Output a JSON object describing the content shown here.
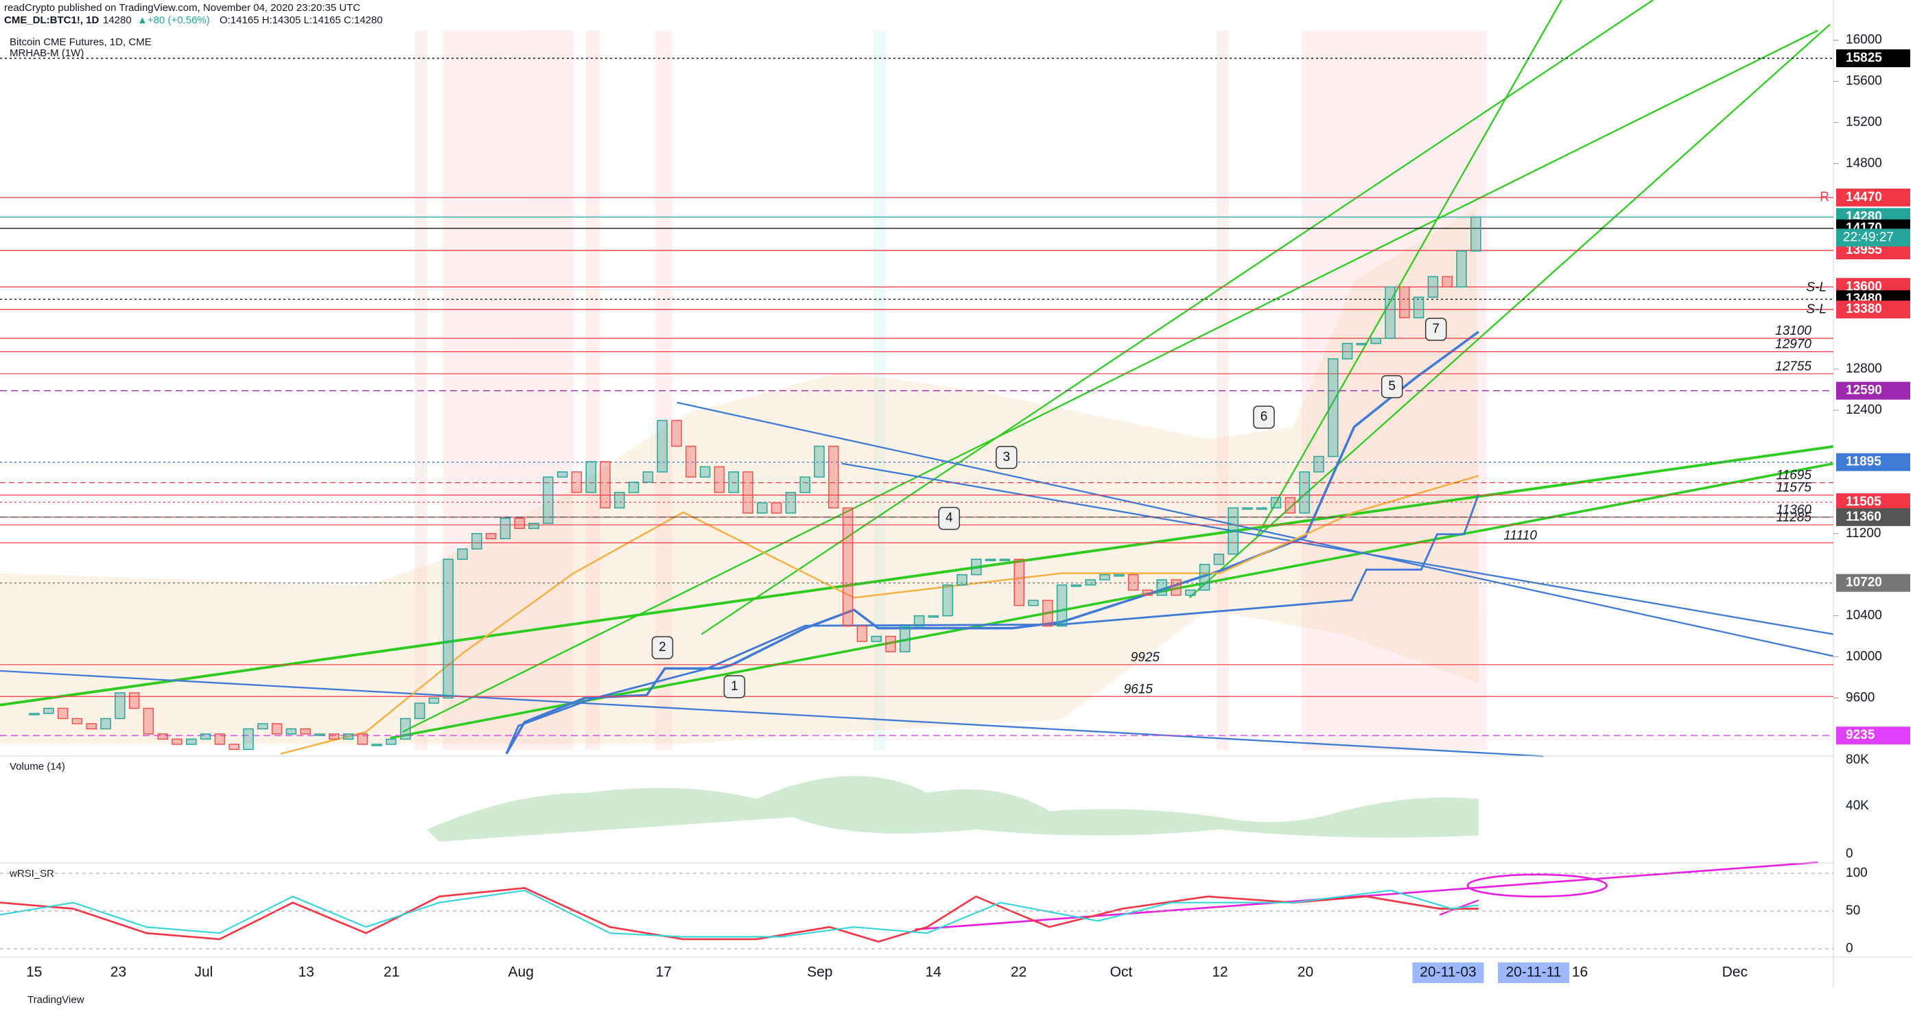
{
  "header": {
    "publisher": "readCrypto published on TradingView.com, November 04, 2020 23:20:35 UTC",
    "symbol": "CME_DL:BTC1!, 1D",
    "last": "14280",
    "change": "▲+80 (+0.56%)",
    "ohlc": "O:14165 H:14305 L:14165 C:14280"
  },
  "chart": {
    "title": "Bitcoin CME Futures, 1D, CME",
    "indicator": "MRHAB-M (1W)",
    "price_ticks": [
      16000,
      15600,
      15200,
      14800,
      12800,
      12400,
      11200,
      10400,
      10000,
      9600
    ],
    "price_labels": [
      {
        "value": 15825,
        "color": "#000000",
        "style": "dotted"
      },
      {
        "value": 14470,
        "color": "#f23645",
        "style": "solid"
      },
      {
        "value": 14280,
        "color": "#26a69a",
        "style": "solid"
      },
      {
        "value": 14170,
        "color": "#000000",
        "style": "solid"
      },
      {
        "value": 13955,
        "color": "#f23645",
        "style": "solid"
      },
      {
        "value": 13600,
        "color": "#f23645",
        "style": "solid"
      },
      {
        "value": 13480,
        "color": "#000000",
        "style": "dotted"
      },
      {
        "value": 13380,
        "color": "#f23645",
        "style": "solid"
      },
      {
        "value": 12590,
        "color": "#9c27b0",
        "style": "dashed"
      },
      {
        "value": 11895,
        "color": "#3f7bd6",
        "style": "dotted"
      },
      {
        "value": 11505,
        "color": "#f23645",
        "style": "dotted"
      },
      {
        "value": 11360,
        "color": "#555555",
        "style": "dashed"
      },
      {
        "value": 10720,
        "color": "#777777",
        "style": "dotted"
      },
      {
        "value": 9235,
        "color": "#e040fb",
        "style": "dashed"
      }
    ],
    "countdown": "22:49:27",
    "levels": [
      13100,
      12970,
      12755,
      11695,
      11575,
      11360,
      11285,
      11110,
      9925,
      9615
    ],
    "closes": [
      9450,
      9500,
      9400,
      9350,
      9300,
      9400,
      9650,
      9500,
      9250,
      9200,
      9150,
      9200,
      9250,
      9150,
      9100,
      9300,
      9350,
      9250,
      9300,
      9250,
      9250,
      9200,
      9250,
      9150,
      9150,
      9200,
      9400,
      9550,
      9600,
      10950,
      11050,
      11200,
      11150,
      11350,
      11250,
      11300,
      11750,
      11800,
      11600,
      11900,
      11450,
      11600,
      11700,
      11800,
      12300,
      12050,
      11750,
      11850,
      11600,
      11800,
      11400,
      11500,
      11400,
      11600,
      11750,
      12050,
      11450,
      10300,
      10150,
      10200,
      10050,
      10300,
      10400,
      10400,
      10700,
      10800,
      10950,
      10950,
      10950,
      10500,
      10550,
      10300,
      10700,
      10700,
      10750,
      10800,
      10800,
      10650,
      10600,
      10750,
      10600,
      10650,
      10900,
      11000,
      11450,
      11450,
      11450,
      11550,
      11400,
      11800,
      11950,
      12900,
      13050,
      13050,
      13100,
      13600,
      13300,
      13500,
      13700,
      13600,
      13950,
      14280
    ],
    "up_color": "#26a69a",
    "down_color": "#ef5350",
    "time_labels": [
      "15",
      "23",
      "Jul",
      "13",
      "21",
      "Aug",
      "17",
      "Sep",
      "14",
      "22",
      "Oct",
      "12",
      "20",
      "16",
      "Dec"
    ],
    "time_highlights": [
      "20-11-03",
      "20-11-11"
    ],
    "callouts": [
      "1",
      "2",
      "3",
      "4",
      "5",
      "6",
      "7"
    ],
    "sl_labels": [
      "S-L",
      "S-L"
    ],
    "r_label": "R"
  },
  "volume": {
    "title": "Volume (14)",
    "ticks": [
      "80K",
      "40K",
      "0"
    ]
  },
  "rsi": {
    "title": "wRSI_SR",
    "ticks": [
      100,
      50,
      0
    ]
  },
  "footer": "TradingView"
}
